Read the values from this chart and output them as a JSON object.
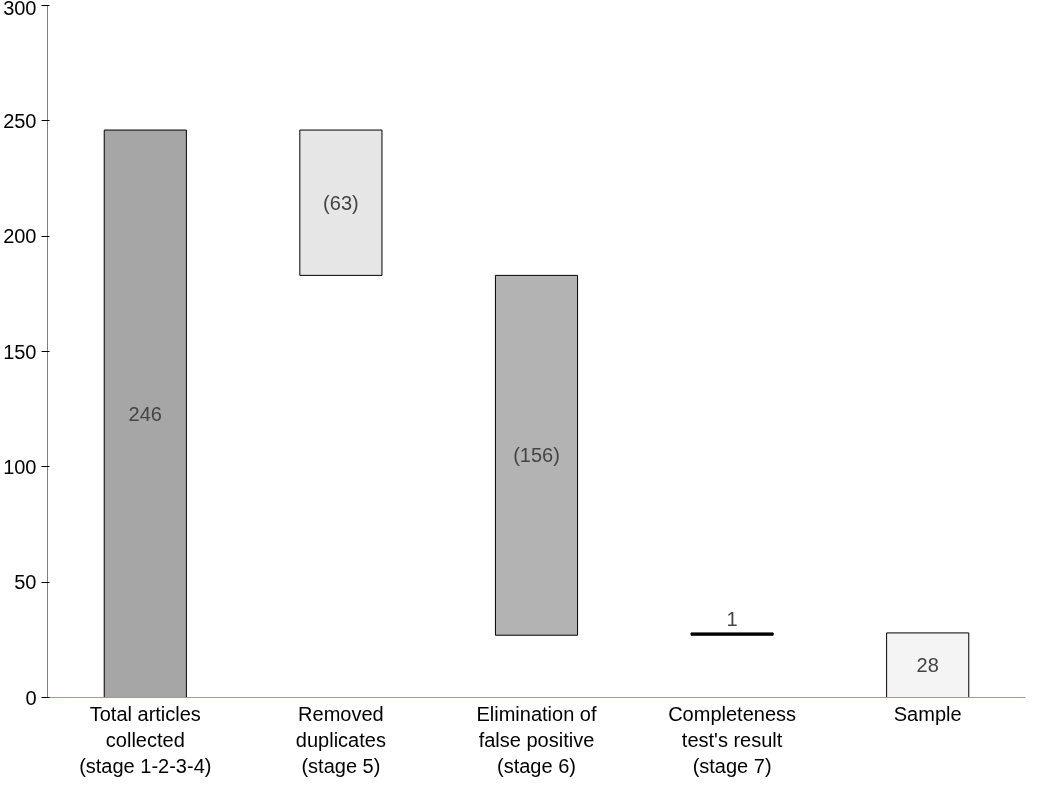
{
  "chart_data": {
    "type": "bar",
    "categories": [
      "Total articles collected (stage 1-2-3-4)",
      "Removed duplicates (stage 5)",
      "Elimination of false positive (stage 6)",
      "Completeness test's result (stage 7)",
      "Sample"
    ],
    "values": [
      246,
      -63,
      -156,
      1,
      28
    ],
    "base": [
      0,
      246,
      183,
      27,
      0
    ],
    "value_labels": [
      "246",
      "(63)",
      "(156)",
      "1",
      "28"
    ],
    "colors": [
      "#a6a6a6",
      "#e6e6e6",
      "#b3b3b3",
      "#000000",
      "#f4f4f4"
    ],
    "ylim": [
      0,
      300
    ],
    "yticks": [
      0,
      50,
      100,
      150,
      200,
      250,
      300
    ],
    "grid": false
  }
}
